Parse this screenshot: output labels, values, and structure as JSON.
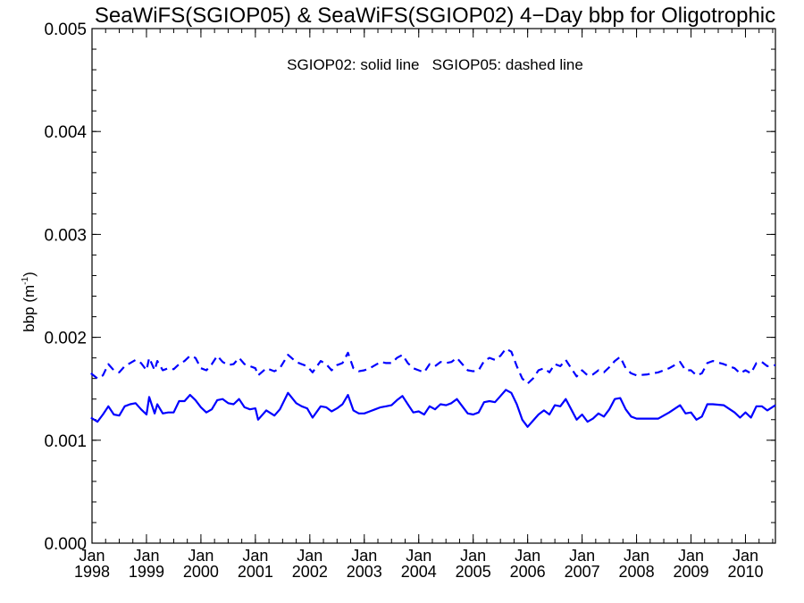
{
  "chart_data": {
    "type": "line",
    "title": "SeaWiFS(SGIOP05) & SeaWiFS(SGIOP02) 4−Day bbp for Oligotrophic",
    "ylabel": "bbp (m",
    "ylabel_sup": "-1",
    "ylabel_close": ")",
    "annotation": "SGIOP02: solid line   SGIOP05: dashed line",
    "ylim": [
      0.0,
      0.005
    ],
    "yticks": [
      0.0,
      0.001,
      0.002,
      0.003,
      0.004,
      0.005
    ],
    "ytick_labels": [
      "0.000",
      "0.001",
      "0.002",
      "0.003",
      "0.004",
      "0.005"
    ],
    "xlim": [
      1998.0,
      2010.55
    ],
    "xticks": [
      1998,
      1999,
      2000,
      2001,
      2002,
      2003,
      2004,
      2005,
      2006,
      2007,
      2008,
      2009,
      2010
    ],
    "xtick_month": "Jan",
    "xtick_years": [
      "1998",
      "1999",
      "2000",
      "2001",
      "2002",
      "2003",
      "2004",
      "2005",
      "2006",
      "2007",
      "2008",
      "2009",
      "2010"
    ],
    "grid": false,
    "line_color": "#0000ff",
    "series": [
      {
        "style": "solid",
        "x": [
          1997.98,
          1998.1,
          1998.2,
          1998.3,
          1998.4,
          1998.5,
          1998.6,
          1998.7,
          1998.8,
          1998.9,
          1999.0,
          1999.05,
          1999.15,
          1999.2,
          1999.3,
          1999.4,
          1999.5,
          1999.6,
          1999.7,
          1999.8,
          1999.9,
          2000.0,
          2000.1,
          2000.2,
          2000.3,
          2000.4,
          2000.5,
          2000.6,
          2000.7,
          2000.8,
          2000.9,
          2001.0,
          2001.05,
          2001.2,
          2001.35,
          2001.45,
          2001.6,
          2001.75,
          2001.85,
          2001.95,
          2002.05,
          2002.2,
          2002.3,
          2002.4,
          2002.5,
          2002.6,
          2002.7,
          2002.8,
          2002.9,
          2003.0,
          2003.1,
          2003.2,
          2003.3,
          2003.4,
          2003.5,
          2003.6,
          2003.7,
          2003.8,
          2003.9,
          2004.0,
          2004.1,
          2004.2,
          2004.3,
          2004.4,
          2004.5,
          2004.6,
          2004.7,
          2004.8,
          2004.9,
          2005.0,
          2005.1,
          2005.2,
          2005.3,
          2005.4,
          2005.5,
          2005.6,
          2005.7,
          2005.8,
          2005.9,
          2006.0,
          2006.1,
          2006.2,
          2006.3,
          2006.4,
          2006.5,
          2006.6,
          2006.7,
          2006.8,
          2006.9,
          2007.0,
          2007.1,
          2007.2,
          2007.3,
          2007.4,
          2007.5,
          2007.6,
          2007.7,
          2007.8,
          2007.9,
          2008.0,
          2008.2,
          2008.4,
          2008.6,
          2008.8,
          2008.9,
          2009.0,
          2009.1,
          2009.2,
          2009.3,
          2009.4,
          2009.6,
          2009.8,
          2009.9,
          2010.0,
          2010.1,
          2010.2,
          2010.3,
          2010.4,
          2010.55
        ],
        "y": [
          0.00122,
          0.00118,
          0.00125,
          0.00133,
          0.00125,
          0.00124,
          0.00133,
          0.00135,
          0.00136,
          0.0013,
          0.00125,
          0.00142,
          0.00126,
          0.00135,
          0.00126,
          0.00127,
          0.00127,
          0.00138,
          0.00138,
          0.00144,
          0.00139,
          0.00132,
          0.00127,
          0.0013,
          0.00139,
          0.0014,
          0.00136,
          0.00135,
          0.0014,
          0.00132,
          0.0013,
          0.00131,
          0.0012,
          0.00129,
          0.00124,
          0.0013,
          0.00146,
          0.00136,
          0.00133,
          0.00131,
          0.00122,
          0.00133,
          0.00132,
          0.00128,
          0.00131,
          0.00135,
          0.00144,
          0.00129,
          0.00126,
          0.00126,
          0.00128,
          0.0013,
          0.00132,
          0.00133,
          0.00134,
          0.00139,
          0.00143,
          0.00135,
          0.00127,
          0.00128,
          0.00125,
          0.00133,
          0.0013,
          0.00135,
          0.00134,
          0.00136,
          0.0014,
          0.00133,
          0.00126,
          0.00125,
          0.00127,
          0.00137,
          0.00138,
          0.00137,
          0.00143,
          0.00149,
          0.00146,
          0.00135,
          0.0012,
          0.00113,
          0.00119,
          0.00125,
          0.00129,
          0.00125,
          0.00134,
          0.00133,
          0.0014,
          0.0013,
          0.0012,
          0.00125,
          0.00118,
          0.00121,
          0.00126,
          0.00123,
          0.0013,
          0.0014,
          0.00141,
          0.0013,
          0.00123,
          0.00121,
          0.00121,
          0.00121,
          0.00127,
          0.00134,
          0.00126,
          0.00127,
          0.0012,
          0.00123,
          0.00135,
          0.00135,
          0.00134,
          0.00127,
          0.00122,
          0.00127,
          0.00122,
          0.00133,
          0.00133,
          0.00129,
          0.00134
        ]
      },
      {
        "style": "dashed",
        "x": [
          1997.98,
          1998.1,
          1998.2,
          1998.3,
          1998.4,
          1998.5,
          1998.6,
          1998.7,
          1998.8,
          1998.9,
          1999.0,
          1999.05,
          1999.15,
          1999.2,
          1999.3,
          1999.4,
          1999.5,
          1999.6,
          1999.7,
          1999.8,
          1999.9,
          2000.0,
          2000.1,
          2000.2,
          2000.3,
          2000.4,
          2000.5,
          2000.6,
          2000.7,
          2000.8,
          2000.9,
          2001.0,
          2001.05,
          2001.2,
          2001.35,
          2001.45,
          2001.6,
          2001.75,
          2001.85,
          2001.95,
          2002.05,
          2002.2,
          2002.3,
          2002.4,
          2002.5,
          2002.6,
          2002.7,
          2002.8,
          2002.9,
          2003.0,
          2003.1,
          2003.2,
          2003.3,
          2003.4,
          2003.5,
          2003.6,
          2003.7,
          2003.8,
          2003.9,
          2004.0,
          2004.1,
          2004.2,
          2004.3,
          2004.4,
          2004.5,
          2004.6,
          2004.7,
          2004.8,
          2004.9,
          2005.0,
          2005.1,
          2005.2,
          2005.3,
          2005.4,
          2005.5,
          2005.6,
          2005.7,
          2005.8,
          2005.9,
          2006.0,
          2006.1,
          2006.2,
          2006.3,
          2006.4,
          2006.5,
          2006.6,
          2006.7,
          2006.8,
          2006.9,
          2007.0,
          2007.1,
          2007.2,
          2007.3,
          2007.4,
          2007.5,
          2007.6,
          2007.7,
          2007.8,
          2007.9,
          2008.0,
          2008.2,
          2008.4,
          2008.6,
          2008.8,
          2008.9,
          2009.0,
          2009.1,
          2009.2,
          2009.3,
          2009.4,
          2009.6,
          2009.8,
          2009.9,
          2010.0,
          2010.1,
          2010.2,
          2010.3,
          2010.4,
          2010.55
        ],
        "y": [
          0.00165,
          0.0016,
          0.00163,
          0.00174,
          0.00168,
          0.00166,
          0.00172,
          0.00175,
          0.00178,
          0.00175,
          0.00168,
          0.0018,
          0.00168,
          0.00177,
          0.00168,
          0.0017,
          0.00169,
          0.00174,
          0.00177,
          0.00182,
          0.0018,
          0.0017,
          0.00168,
          0.00174,
          0.00182,
          0.00176,
          0.00173,
          0.00174,
          0.0018,
          0.00174,
          0.00172,
          0.0017,
          0.00163,
          0.0017,
          0.00167,
          0.0017,
          0.00183,
          0.00176,
          0.00174,
          0.00172,
          0.00166,
          0.00177,
          0.00174,
          0.00168,
          0.00173,
          0.00175,
          0.00185,
          0.0017,
          0.00167,
          0.00168,
          0.0017,
          0.00173,
          0.00176,
          0.00175,
          0.00175,
          0.0018,
          0.00183,
          0.00175,
          0.0017,
          0.00168,
          0.00166,
          0.00174,
          0.00172,
          0.00176,
          0.00175,
          0.00176,
          0.0018,
          0.00174,
          0.00168,
          0.00167,
          0.00168,
          0.00177,
          0.0018,
          0.00178,
          0.00182,
          0.00189,
          0.00186,
          0.00172,
          0.0016,
          0.00155,
          0.0016,
          0.00168,
          0.0017,
          0.00166,
          0.00174,
          0.00172,
          0.00178,
          0.0017,
          0.00162,
          0.00168,
          0.00163,
          0.00164,
          0.00168,
          0.00166,
          0.00171,
          0.00177,
          0.00181,
          0.0017,
          0.00165,
          0.00163,
          0.00164,
          0.00166,
          0.0017,
          0.00176,
          0.00168,
          0.00168,
          0.00163,
          0.00165,
          0.00175,
          0.00177,
          0.00174,
          0.0017,
          0.00165,
          0.00168,
          0.00165,
          0.00175,
          0.00176,
          0.00172,
          0.00173
        ]
      }
    ]
  }
}
